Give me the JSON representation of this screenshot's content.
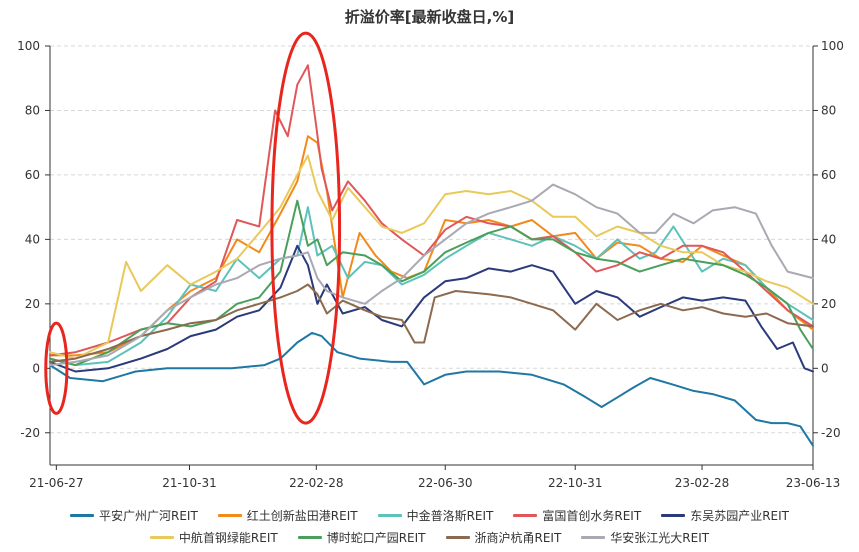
{
  "chart_data": {
    "type": "line",
    "title": "折溢价率[最新收盘日,%]",
    "xlabel": "",
    "ylabel": "",
    "ylim": [
      -30,
      100
    ],
    "yticks": [
      -20,
      0,
      20,
      40,
      60,
      80,
      100
    ],
    "x_start": "2021-06-21",
    "x_end": "2023-06-13",
    "xticks": [
      "21-06-27",
      "21-10-31",
      "22-02-28",
      "22-06-30",
      "22-10-31",
      "23-02-28",
      "23-06-13"
    ],
    "xtick_dates": [
      "2021-06-27",
      "2021-10-31",
      "2022-02-28",
      "2022-06-30",
      "2022-10-31",
      "2023-02-28",
      "2023-06-13"
    ],
    "grid": true,
    "legend_position": "bottom",
    "annotations": [
      {
        "shape": "ellipse",
        "color": "#e8261e",
        "x_from": "2021-06-17",
        "x_to": "2021-07-07",
        "y_from": -14,
        "y_to": 14
      },
      {
        "shape": "ellipse",
        "color": "#e8261e",
        "x_from": "2022-01-17",
        "x_to": "2022-03-22",
        "y_from": -17,
        "y_to": 104
      }
    ],
    "series": [
      {
        "name": "平安广州广河REIT",
        "color": "#1f77a4",
        "x": [
          "2021-06-21",
          "2021-07-10",
          "2021-08-10",
          "2021-09-10",
          "2021-10-10",
          "2021-11-10",
          "2021-12-10",
          "2022-01-10",
          "2022-01-25",
          "2022-02-10",
          "2022-02-24",
          "2022-03-05",
          "2022-03-20",
          "2022-04-10",
          "2022-05-10",
          "2022-05-25",
          "2022-06-10",
          "2022-06-30",
          "2022-07-20",
          "2022-08-20",
          "2022-09-20",
          "2022-10-20",
          "2022-11-10",
          "2022-11-25",
          "2022-12-10",
          "2022-12-25",
          "2023-01-10",
          "2023-01-31",
          "2023-02-20",
          "2023-03-10",
          "2023-03-31",
          "2023-04-20",
          "2023-05-05",
          "2023-05-20",
          "2023-06-01",
          "2023-06-13"
        ],
        "y": [
          1,
          -3,
          -4,
          -1,
          0,
          0,
          0,
          1,
          3,
          8,
          11,
          10,
          5,
          3,
          2,
          2,
          -5,
          -2,
          -1,
          -1,
          -2,
          -5,
          -9,
          -12,
          -9,
          -6,
          -3,
          -5,
          -7,
          -8,
          -10,
          -16,
          -17,
          -17,
          -18,
          -24
        ]
      },
      {
        "name": "红土创新盐田港REIT",
        "color": "#f28a1a",
        "x": [
          "2021-06-21",
          "2021-07-15",
          "2021-08-15",
          "2021-09-15",
          "2021-10-10",
          "2021-11-01",
          "2021-11-25",
          "2021-12-15",
          "2022-01-05",
          "2022-01-25",
          "2022-02-10",
          "2022-02-20",
          "2022-03-01",
          "2022-03-10",
          "2022-03-25",
          "2022-04-10",
          "2022-04-25",
          "2022-05-10",
          "2022-05-25",
          "2022-06-10",
          "2022-06-30",
          "2022-07-20",
          "2022-08-10",
          "2022-08-31",
          "2022-09-20",
          "2022-10-10",
          "2022-10-31",
          "2022-11-20",
          "2022-12-10",
          "2022-12-31",
          "2023-01-20",
          "2023-02-10",
          "2023-02-28",
          "2023-03-20",
          "2023-04-10",
          "2023-04-30",
          "2023-05-20",
          "2023-06-13"
        ],
        "y": [
          4,
          4,
          5,
          10,
          18,
          24,
          28,
          40,
          36,
          48,
          58,
          72,
          70,
          55,
          22,
          42,
          35,
          30,
          28,
          30,
          46,
          45,
          46,
          44,
          46,
          41,
          42,
          34,
          39,
          38,
          34,
          33,
          38,
          35,
          32,
          25,
          18,
          12
        ]
      },
      {
        "name": "中金普洛斯REIT",
        "color": "#5ec2bb",
        "x": [
          "2021-06-21",
          "2021-07-15",
          "2021-08-15",
          "2021-09-15",
          "2021-10-10",
          "2021-11-01",
          "2021-11-25",
          "2021-12-15",
          "2022-01-05",
          "2022-01-25",
          "2022-02-10",
          "2022-02-20",
          "2022-03-01",
          "2022-03-15",
          "2022-03-30",
          "2022-04-15",
          "2022-05-01",
          "2022-05-20",
          "2022-06-10",
          "2022-06-30",
          "2022-07-20",
          "2022-08-10",
          "2022-08-31",
          "2022-09-20",
          "2022-10-10",
          "2022-10-31",
          "2022-11-20",
          "2022-12-10",
          "2022-12-31",
          "2023-01-15",
          "2023-02-01",
          "2023-02-28",
          "2023-03-20",
          "2023-04-10",
          "2023-04-30",
          "2023-05-20",
          "2023-06-13"
        ],
        "y": [
          3,
          1,
          2,
          8,
          16,
          26,
          24,
          34,
          28,
          34,
          35,
          50,
          35,
          38,
          28,
          33,
          32,
          26,
          29,
          34,
          38,
          42,
          40,
          38,
          41,
          38,
          34,
          40,
          34,
          36,
          44,
          30,
          34,
          32,
          25,
          20,
          15
        ]
      },
      {
        "name": "富国首创水务REIT",
        "color": "#e0575a",
        "x": [
          "2021-06-21",
          "2021-07-15",
          "2021-08-15",
          "2021-09-15",
          "2021-10-10",
          "2021-11-01",
          "2021-11-25",
          "2021-12-15",
          "2022-01-05",
          "2022-01-20",
          "2022-02-01",
          "2022-02-10",
          "2022-02-20",
          "2022-02-28",
          "2022-03-05",
          "2022-03-15",
          "2022-03-30",
          "2022-04-15",
          "2022-05-01",
          "2022-05-20",
          "2022-06-10",
          "2022-06-30",
          "2022-07-20",
          "2022-08-10",
          "2022-08-31",
          "2022-09-20",
          "2022-10-10",
          "2022-10-31",
          "2022-11-20",
          "2022-12-10",
          "2022-12-31",
          "2023-01-20",
          "2023-02-10",
          "2023-02-28",
          "2023-03-20",
          "2023-04-10",
          "2023-04-30",
          "2023-05-20",
          "2023-06-13"
        ],
        "y": [
          4,
          5,
          8,
          12,
          14,
          22,
          27,
          46,
          44,
          80,
          72,
          88,
          94,
          75,
          62,
          49,
          58,
          52,
          45,
          40,
          35,
          43,
          47,
          45,
          44,
          40,
          41,
          36,
          30,
          32,
          36,
          34,
          38,
          38,
          36,
          30,
          24,
          18,
          13
        ]
      },
      {
        "name": "东吴苏园产业REIT",
        "color": "#2b3a7a",
        "x": [
          "2021-06-21",
          "2021-07-15",
          "2021-08-15",
          "2021-09-15",
          "2021-10-10",
          "2021-11-01",
          "2021-11-25",
          "2021-12-15",
          "2022-01-05",
          "2022-01-25",
          "2022-02-10",
          "2022-02-20",
          "2022-03-01",
          "2022-03-10",
          "2022-03-25",
          "2022-04-15",
          "2022-05-01",
          "2022-05-20",
          "2022-06-10",
          "2022-06-30",
          "2022-07-20",
          "2022-08-10",
          "2022-08-31",
          "2022-09-20",
          "2022-10-10",
          "2022-10-31",
          "2022-11-20",
          "2022-12-10",
          "2022-12-31",
          "2023-01-20",
          "2023-02-10",
          "2023-02-28",
          "2023-03-20",
          "2023-04-10",
          "2023-04-25",
          "2023-05-10",
          "2023-05-25",
          "2023-06-05",
          "2023-06-13"
        ],
        "y": [
          2,
          -1,
          0,
          3,
          6,
          10,
          12,
          16,
          18,
          25,
          38,
          32,
          20,
          26,
          17,
          19,
          15,
          13,
          22,
          27,
          28,
          31,
          30,
          32,
          30,
          20,
          24,
          22,
          16,
          19,
          22,
          21,
          22,
          21,
          13,
          6,
          8,
          0,
          -1
        ]
      },
      {
        "name": "中航首钢绿能REIT",
        "color": "#e8c95a",
        "x": [
          "2021-06-21",
          "2021-07-15",
          "2021-08-15",
          "2021-09-01",
          "2021-09-15",
          "2021-10-10",
          "2021-11-01",
          "2021-11-25",
          "2021-12-15",
          "2022-01-05",
          "2022-01-25",
          "2022-02-10",
          "2022-02-20",
          "2022-03-01",
          "2022-03-15",
          "2022-03-30",
          "2022-04-15",
          "2022-05-01",
          "2022-05-20",
          "2022-06-10",
          "2022-06-30",
          "2022-07-20",
          "2022-08-10",
          "2022-08-31",
          "2022-09-20",
          "2022-10-10",
          "2022-10-31",
          "2022-11-20",
          "2022-12-10",
          "2022-12-31",
          "2023-01-20",
          "2023-02-10",
          "2023-02-28",
          "2023-03-20",
          "2023-04-10",
          "2023-04-30",
          "2023-05-20",
          "2023-06-13"
        ],
        "y": [
          5,
          3,
          8,
          33,
          24,
          32,
          26,
          30,
          34,
          42,
          50,
          60,
          66,
          55,
          46,
          56,
          50,
          44,
          42,
          45,
          54,
          55,
          54,
          55,
          52,
          47,
          47,
          41,
          44,
          42,
          38,
          36,
          36,
          32,
          30,
          27,
          25,
          20
        ]
      },
      {
        "name": "博时蛇口产园REIT",
        "color": "#4aa05a",
        "x": [
          "2021-06-21",
          "2021-07-15",
          "2021-08-15",
          "2021-09-15",
          "2021-10-10",
          "2021-11-01",
          "2021-11-25",
          "2021-12-15",
          "2022-01-05",
          "2022-01-25",
          "2022-02-10",
          "2022-02-20",
          "2022-03-01",
          "2022-03-10",
          "2022-03-25",
          "2022-04-15",
          "2022-05-01",
          "2022-05-20",
          "2022-06-10",
          "2022-06-30",
          "2022-07-20",
          "2022-08-10",
          "2022-08-31",
          "2022-09-20",
          "2022-10-10",
          "2022-10-31",
          "2022-11-20",
          "2022-12-10",
          "2022-12-31",
          "2023-01-20",
          "2023-02-10",
          "2023-02-28",
          "2023-03-20",
          "2023-04-10",
          "2023-04-30",
          "2023-05-20",
          "2023-06-01",
          "2023-06-13"
        ],
        "y": [
          3,
          1,
          5,
          12,
          14,
          13,
          15,
          20,
          22,
          30,
          52,
          38,
          40,
          32,
          36,
          35,
          32,
          27,
          30,
          36,
          39,
          42,
          44,
          40,
          40,
          36,
          34,
          33,
          30,
          32,
          34,
          33,
          32,
          29,
          25,
          20,
          12,
          6
        ]
      },
      {
        "name": "浙商沪杭甬REIT",
        "color": "#8c6a4f",
        "x": [
          "2021-06-21",
          "2021-07-15",
          "2021-08-15",
          "2021-09-15",
          "2021-10-10",
          "2021-11-01",
          "2021-11-25",
          "2021-12-15",
          "2022-01-05",
          "2022-01-25",
          "2022-02-10",
          "2022-02-20",
          "2022-03-01",
          "2022-03-10",
          "2022-03-25",
          "2022-04-15",
          "2022-05-01",
          "2022-05-20",
          "2022-06-01",
          "2022-06-10",
          "2022-06-20",
          "2022-07-10",
          "2022-08-10",
          "2022-08-31",
          "2022-09-20",
          "2022-10-10",
          "2022-10-31",
          "2022-11-20",
          "2022-12-10",
          "2022-12-31",
          "2023-01-20",
          "2023-02-10",
          "2023-02-28",
          "2023-03-20",
          "2023-04-10",
          "2023-04-30",
          "2023-05-20",
          "2023-06-13"
        ],
        "y": [
          2,
          3,
          6,
          10,
          12,
          14,
          15,
          18,
          20,
          22,
          24,
          26,
          23,
          17,
          21,
          18,
          16,
          15,
          8,
          8,
          22,
          24,
          23,
          22,
          20,
          18,
          12,
          20,
          15,
          18,
          20,
          18,
          19,
          17,
          16,
          17,
          14,
          13
        ]
      },
      {
        "name": "华安张江光大REIT",
        "color": "#a9a9b3",
        "x": [
          "2021-06-21",
          "2021-07-15",
          "2021-08-15",
          "2021-09-15",
          "2021-10-10",
          "2021-11-01",
          "2021-11-25",
          "2021-12-15",
          "2022-01-05",
          "2022-01-25",
          "2022-02-10",
          "2022-02-20",
          "2022-03-01",
          "2022-03-10",
          "2022-03-25",
          "2022-04-15",
          "2022-05-01",
          "2022-05-20",
          "2022-06-10",
          "2022-06-30",
          "2022-07-20",
          "2022-08-10",
          "2022-08-31",
          "2022-09-20",
          "2022-10-10",
          "2022-10-31",
          "2022-11-20",
          "2022-12-10",
          "2022-12-31",
          "2023-01-15",
          "2023-02-01",
          "2023-02-20",
          "2023-03-10",
          "2023-03-31",
          "2023-04-20",
          "2023-05-05",
          "2023-05-20",
          "2023-06-13"
        ],
        "y": [
          1,
          2,
          4,
          10,
          18,
          22,
          26,
          28,
          32,
          34,
          35,
          36,
          28,
          24,
          22,
          20,
          24,
          28,
          35,
          40,
          45,
          48,
          50,
          52,
          57,
          54,
          50,
          48,
          42,
          42,
          48,
          45,
          49,
          50,
          48,
          38,
          30,
          28
        ]
      }
    ]
  }
}
